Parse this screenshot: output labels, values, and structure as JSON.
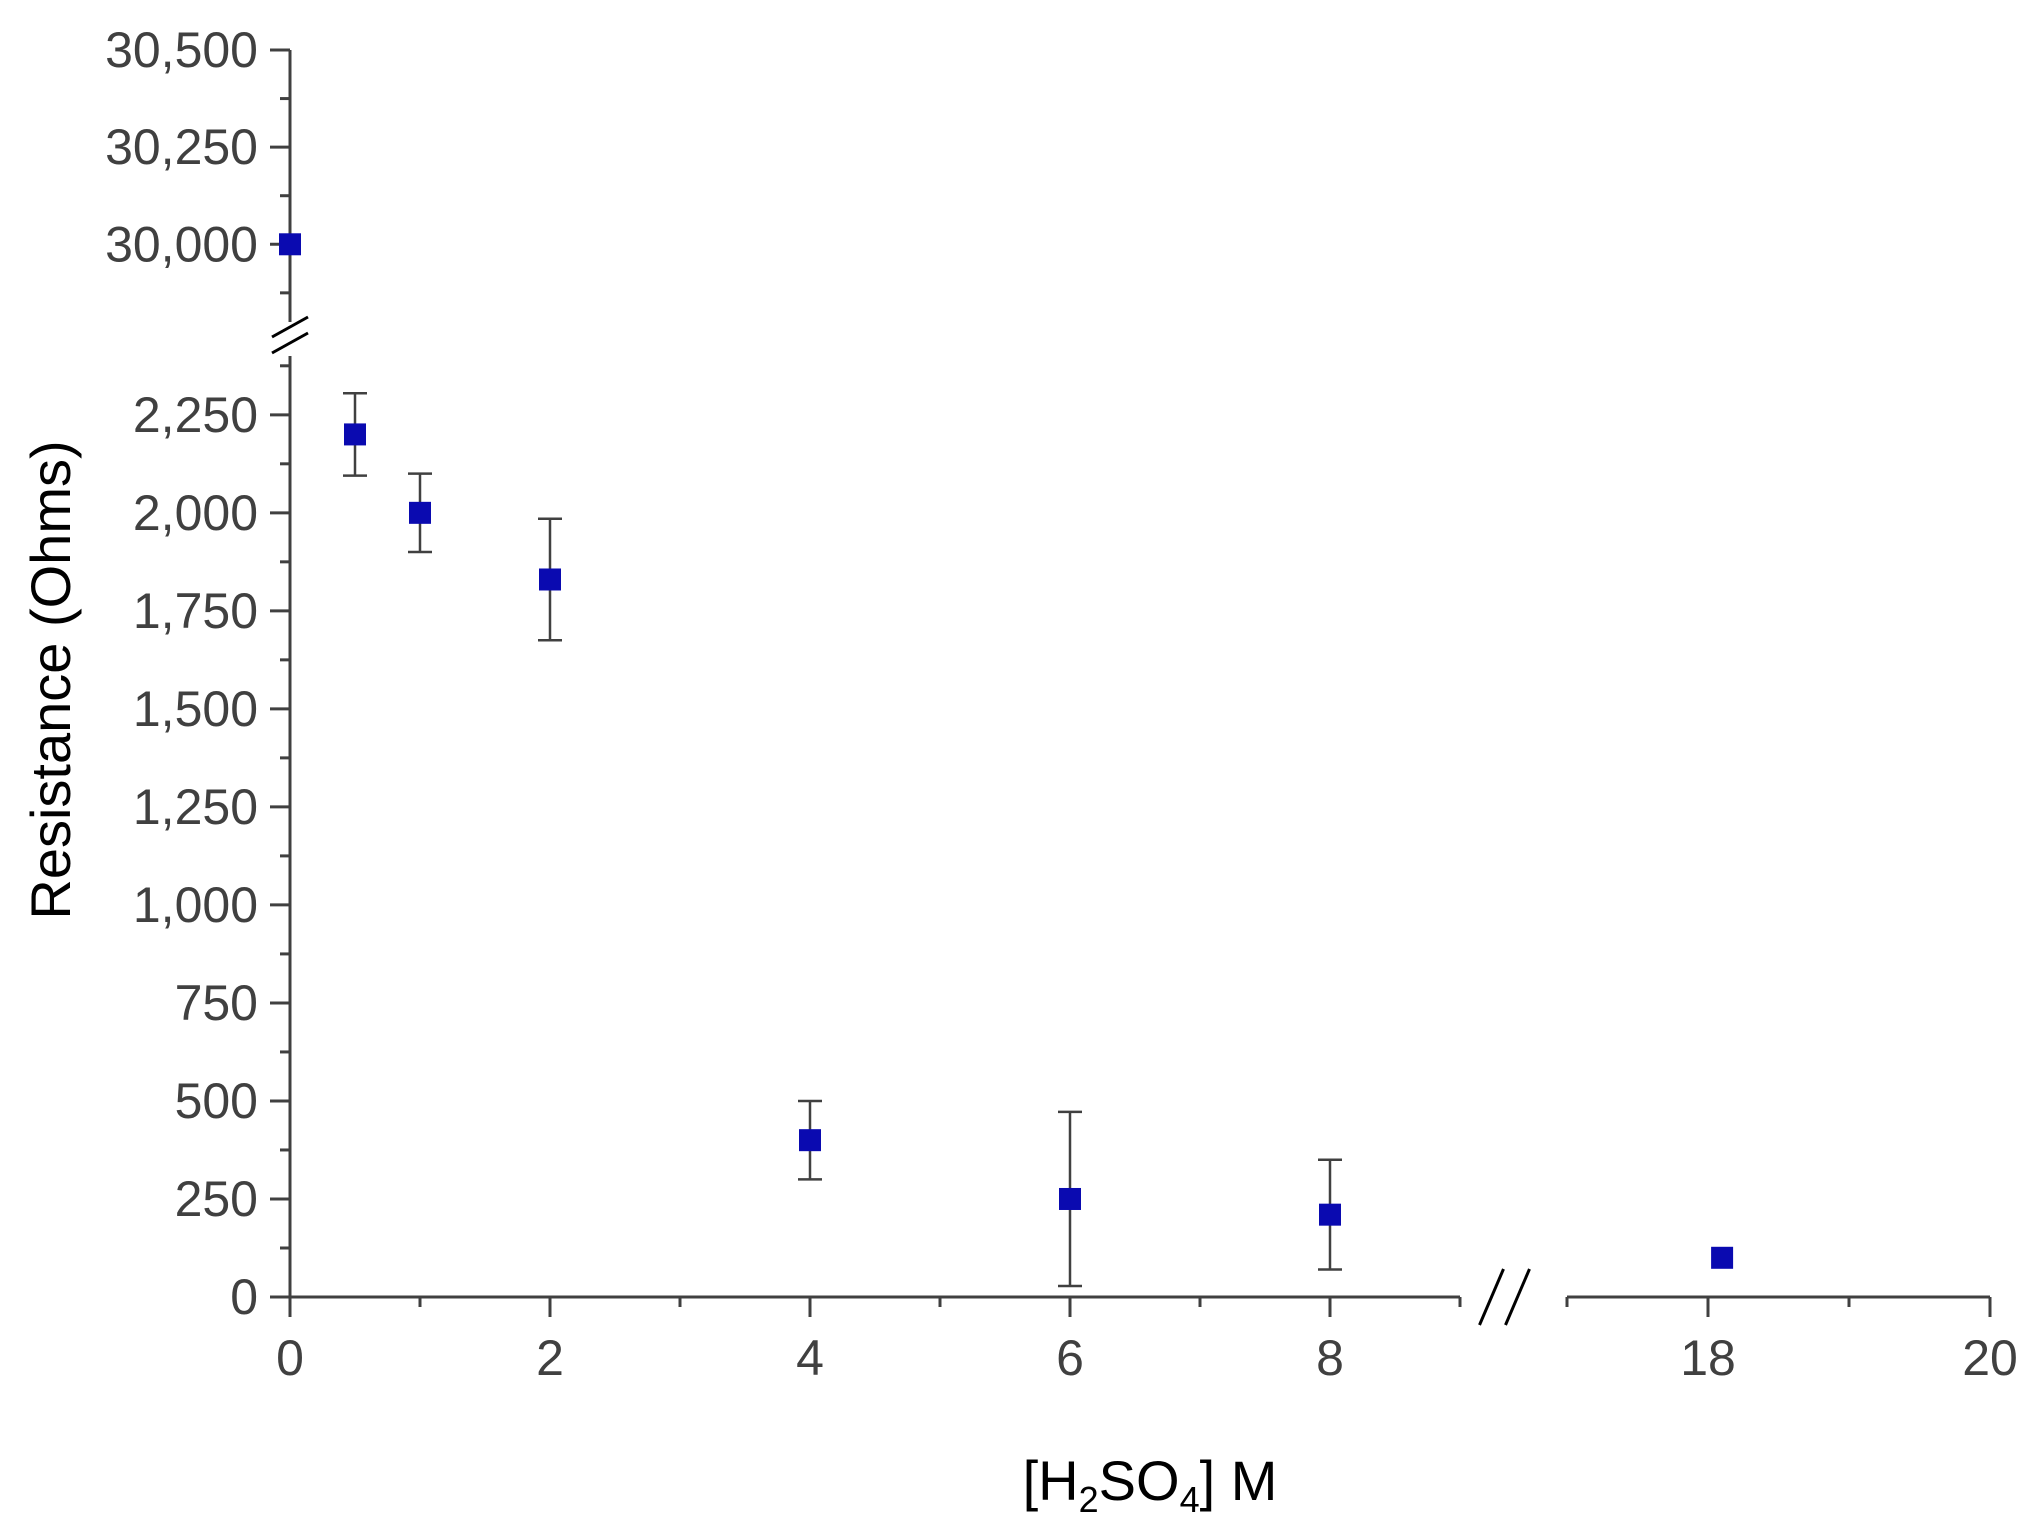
{
  "chart_data": {
    "type": "scatter",
    "title": "",
    "xlabel": {
      "prefix": "[H",
      "sub1": "2",
      "mid": "SO",
      "sub2": "4",
      "suffix": "] M"
    },
    "ylabel": "Resistance (Ohms)",
    "x_axis": {
      "break_between": [
        8,
        18
      ],
      "lower_range": [
        0,
        9
      ],
      "upper_range": [
        17,
        20
      ],
      "tick_labels": [
        "0",
        "2",
        "4",
        "6",
        "8",
        "18",
        "20"
      ]
    },
    "y_axis": {
      "break_between": [
        2400,
        29800
      ],
      "lower_range": [
        0,
        2400
      ],
      "upper_range": [
        29800,
        30500
      ],
      "tick_labels": [
        "0",
        "250",
        "500",
        "750",
        "1,000",
        "1,250",
        "1,500",
        "1,750",
        "2,000",
        "2,250",
        "30,000",
        "30,250",
        "30,500"
      ]
    },
    "series": [
      {
        "color": "#0a0ab0",
        "marker": "square",
        "points": [
          {
            "x": 0,
            "y": 30000,
            "err": 0
          },
          {
            "x": 0.5,
            "y": 2200,
            "err": 105
          },
          {
            "x": 1,
            "y": 2000,
            "err": 100
          },
          {
            "x": 2,
            "y": 1830,
            "err": 155
          },
          {
            "x": 4,
            "y": 400,
            "err": 100
          },
          {
            "x": 6,
            "y": 250,
            "err": 222
          },
          {
            "x": 8,
            "y": 210,
            "err": 140
          },
          {
            "x": 18.1,
            "y": 100,
            "err": 0
          }
        ]
      }
    ],
    "grid": false,
    "legend": "none"
  }
}
